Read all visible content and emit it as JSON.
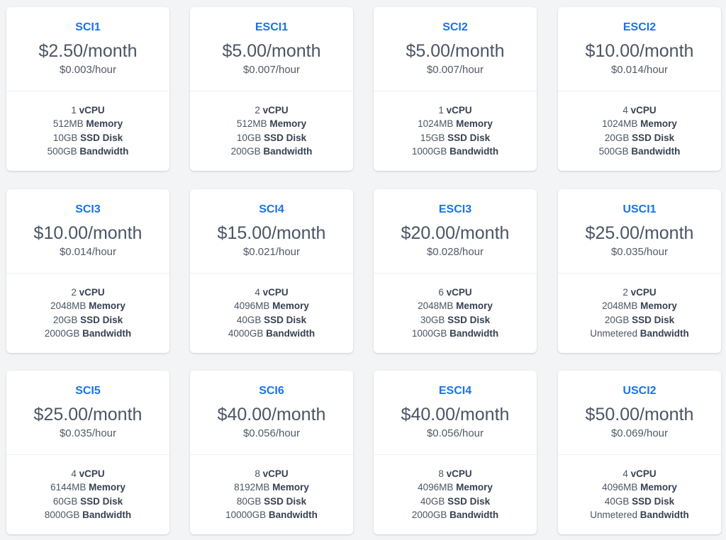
{
  "plans": [
    {
      "name": "SCI1",
      "monthly": "$2.50/month",
      "hourly": "$0.003/hour",
      "cpu": "1",
      "memory": "512MB",
      "disk": "10GB",
      "bandwidth": "500GB"
    },
    {
      "name": "ESCI1",
      "monthly": "$5.00/month",
      "hourly": "$0.007/hour",
      "cpu": "2",
      "memory": "512MB",
      "disk": "10GB",
      "bandwidth": "200GB"
    },
    {
      "name": "SCI2",
      "monthly": "$5.00/month",
      "hourly": "$0.007/hour",
      "cpu": "1",
      "memory": "1024MB",
      "disk": "15GB",
      "bandwidth": "1000GB"
    },
    {
      "name": "ESCI2",
      "monthly": "$10.00/month",
      "hourly": "$0.014/hour",
      "cpu": "4",
      "memory": "1024MB",
      "disk": "20GB",
      "bandwidth": "500GB"
    },
    {
      "name": "SCI3",
      "monthly": "$10.00/month",
      "hourly": "$0.014/hour",
      "cpu": "2",
      "memory": "2048MB",
      "disk": "20GB",
      "bandwidth": "2000GB"
    },
    {
      "name": "SCI4",
      "monthly": "$15.00/month",
      "hourly": "$0.021/hour",
      "cpu": "4",
      "memory": "4096MB",
      "disk": "40GB",
      "bandwidth": "4000GB"
    },
    {
      "name": "ESCI3",
      "monthly": "$20.00/month",
      "hourly": "$0.028/hour",
      "cpu": "6",
      "memory": "2048MB",
      "disk": "30GB",
      "bandwidth": "1000GB"
    },
    {
      "name": "USCI1",
      "monthly": "$25.00/month",
      "hourly": "$0.035/hour",
      "cpu": "2",
      "memory": "2048MB",
      "disk": "20GB",
      "bandwidth": "Unmetered"
    },
    {
      "name": "SCI5",
      "monthly": "$25.00/month",
      "hourly": "$0.035/hour",
      "cpu": "4",
      "memory": "6144MB",
      "disk": "60GB",
      "bandwidth": "8000GB"
    },
    {
      "name": "SCI6",
      "monthly": "$40.00/month",
      "hourly": "$0.056/hour",
      "cpu": "8",
      "memory": "8192MB",
      "disk": "80GB",
      "bandwidth": "10000GB"
    },
    {
      "name": "ESCI4",
      "monthly": "$40.00/month",
      "hourly": "$0.056/hour",
      "cpu": "8",
      "memory": "4096MB",
      "disk": "40GB",
      "bandwidth": "2000GB"
    },
    {
      "name": "USCI2",
      "monthly": "$50.00/month",
      "hourly": "$0.069/hour",
      "cpu": "4",
      "memory": "4096MB",
      "disk": "40GB",
      "bandwidth": "Unmetered"
    }
  ],
  "labels": {
    "cpu": "vCPU",
    "memory": "Memory",
    "disk": "SSD Disk",
    "bandwidth": "Bandwidth"
  },
  "colors": {
    "plan_name": "#1a73e8",
    "card_bg": "#ffffff",
    "page_bg": "#f3f4f6"
  }
}
